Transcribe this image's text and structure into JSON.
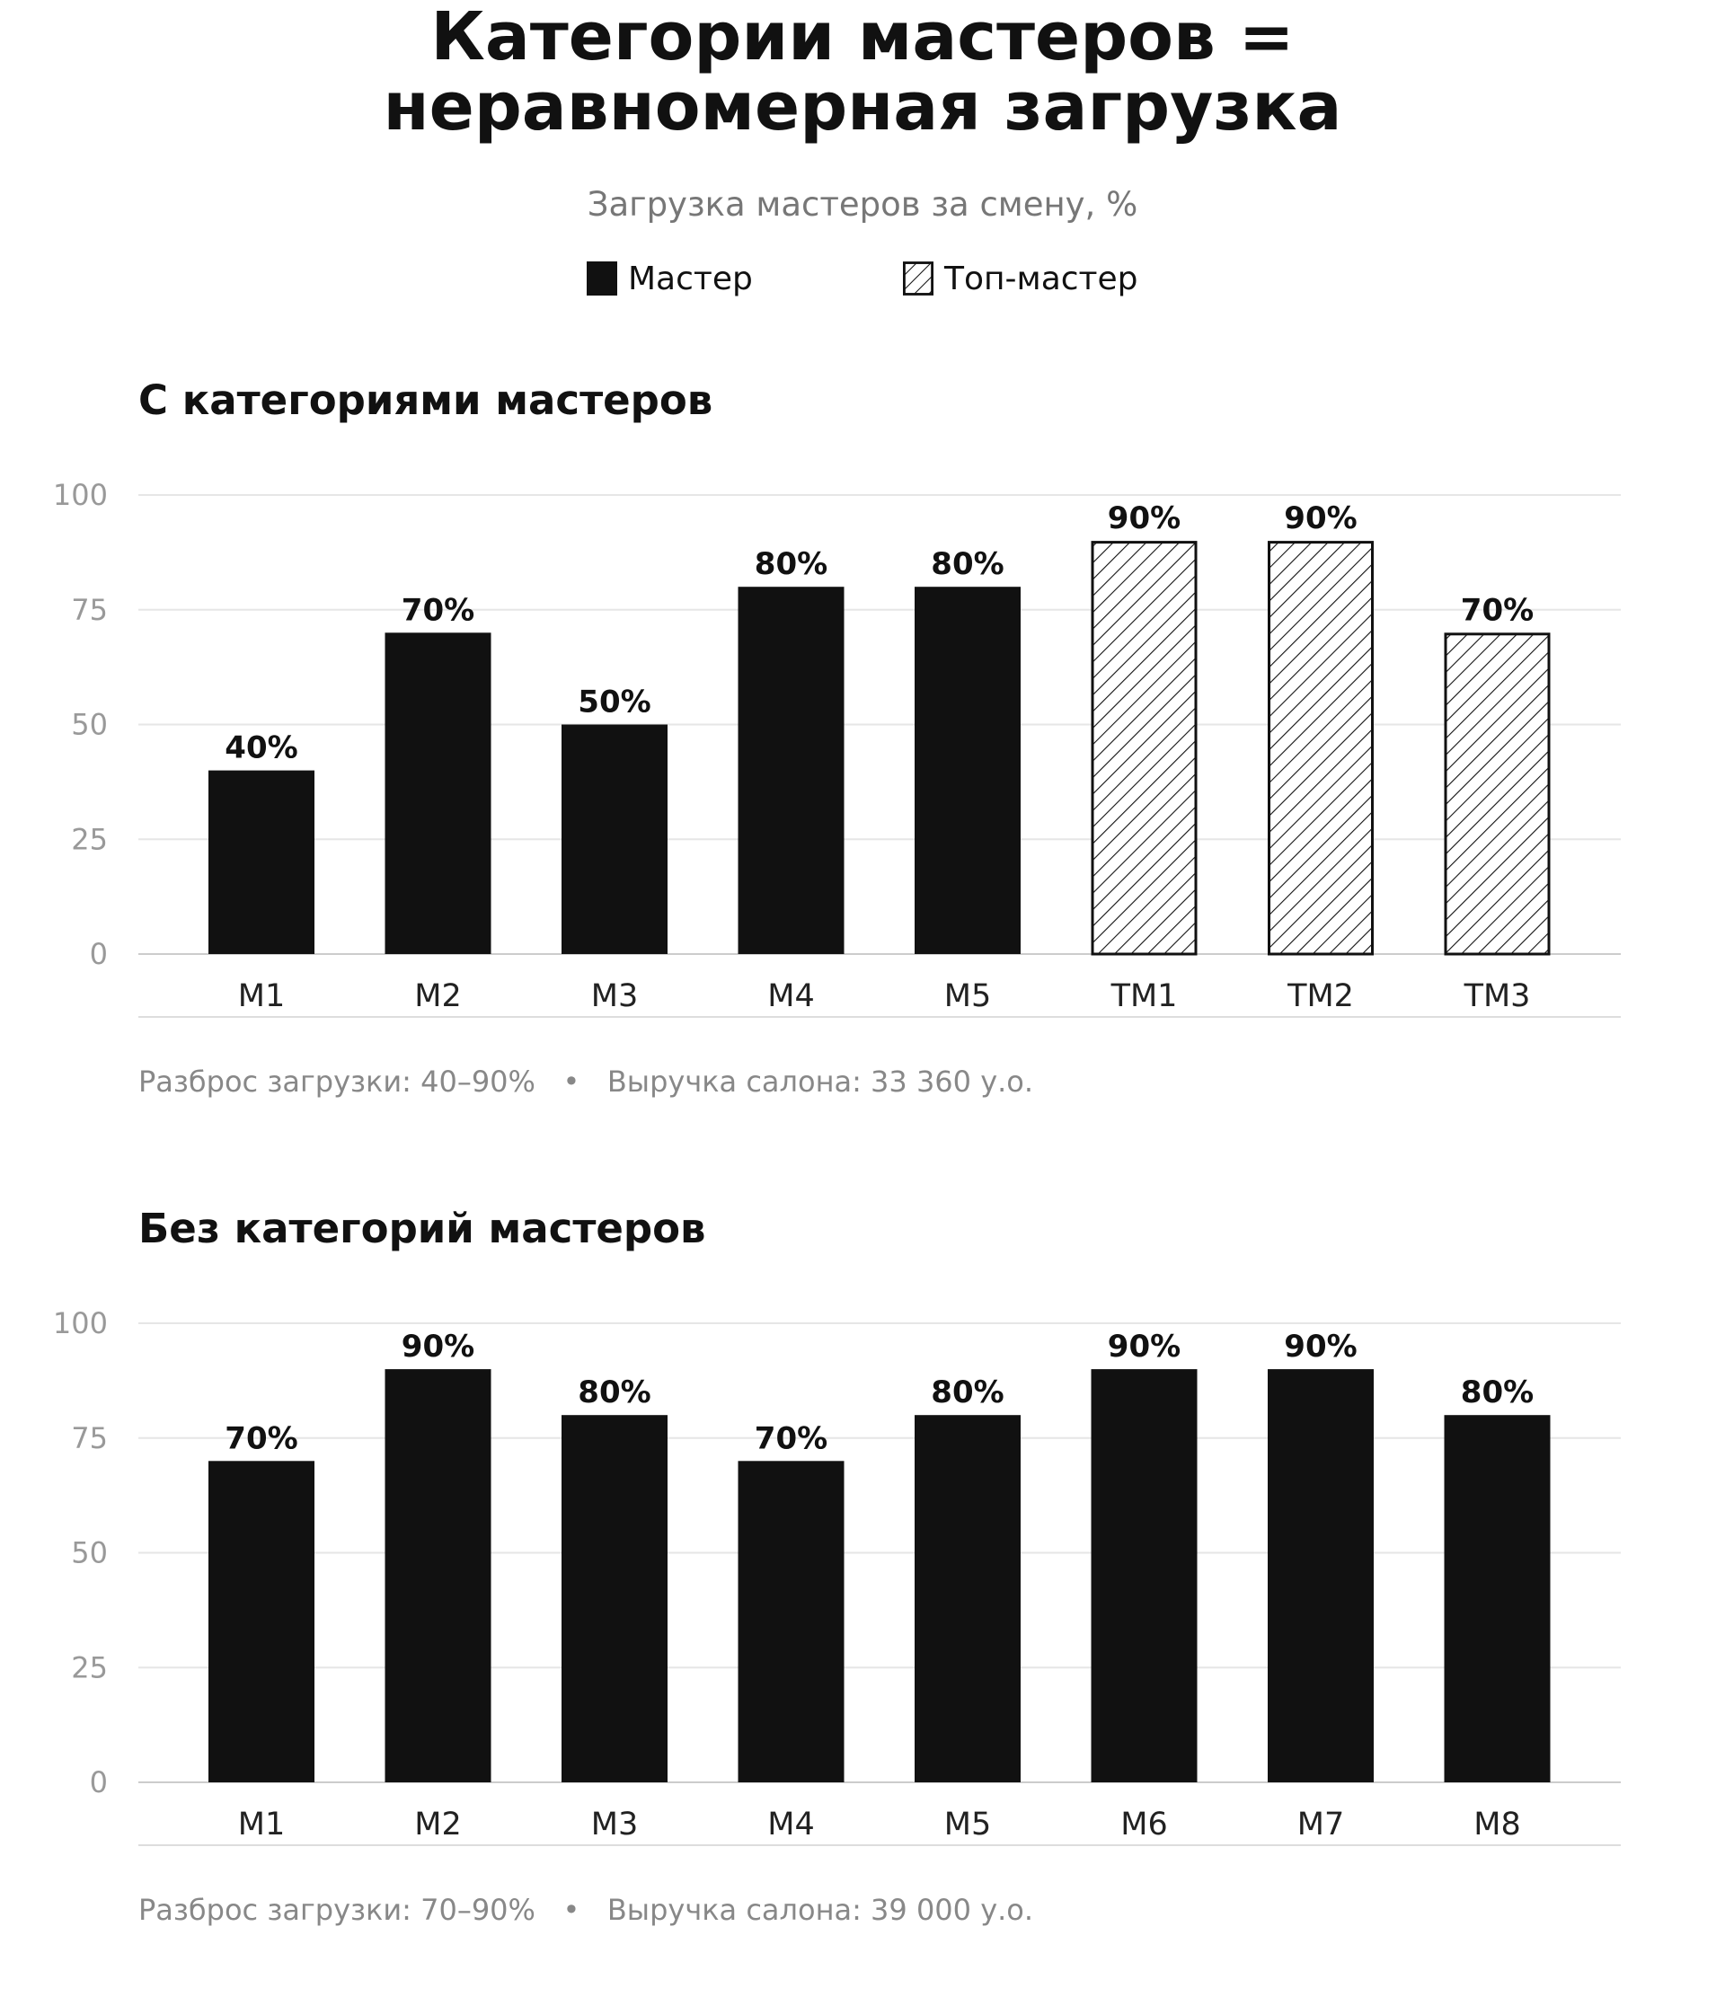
{
  "header": {
    "title_line1": "Категории мастеров =",
    "title_line2": "неравномерная загрузка",
    "subtitle": "Загрузка мастеров за смену, %"
  },
  "legend": {
    "items": [
      {
        "label": "Мастер",
        "style": "solid"
      },
      {
        "label": "Топ-мастер",
        "style": "hatched"
      }
    ]
  },
  "colors": {
    "bar": "#111111",
    "grid": "#e6e6e6",
    "hatch_fill": "#ffffff"
  },
  "chart_data": [
    {
      "type": "bar",
      "title": "С категориями мастеров",
      "categories": [
        "M1",
        "M2",
        "M3",
        "M4",
        "M5",
        "TM1",
        "TM2",
        "TM3"
      ],
      "values": [
        40,
        70,
        50,
        80,
        80,
        90,
        90,
        70
      ],
      "styles": [
        "solid",
        "solid",
        "solid",
        "solid",
        "solid",
        "hatched",
        "hatched",
        "hatched"
      ],
      "value_labels": [
        "40%",
        "70%",
        "50%",
        "80%",
        "80%",
        "90%",
        "90%",
        "70%"
      ],
      "yticks": [
        0,
        25,
        50,
        75,
        100
      ],
      "ylim": [
        0,
        100
      ],
      "grid": true,
      "footnote": "Разброс загрузки: 40–90%   •   Выручка салона: 33 360 у.о."
    },
    {
      "type": "bar",
      "title": "Без категорий мастеров",
      "categories": [
        "M1",
        "M2",
        "M3",
        "M4",
        "M5",
        "M6",
        "M7",
        "M8"
      ],
      "values": [
        70,
        90,
        80,
        70,
        80,
        90,
        90,
        80
      ],
      "styles": [
        "solid",
        "solid",
        "solid",
        "solid",
        "solid",
        "solid",
        "solid",
        "solid"
      ],
      "value_labels": [
        "70%",
        "90%",
        "80%",
        "70%",
        "80%",
        "90%",
        "90%",
        "80%"
      ],
      "yticks": [
        0,
        25,
        50,
        75,
        100
      ],
      "ylim": [
        0,
        100
      ],
      "grid": true,
      "footnote": "Разброс загрузки: 70–90%   •   Выручка салона: 39 000 у.о."
    }
  ]
}
